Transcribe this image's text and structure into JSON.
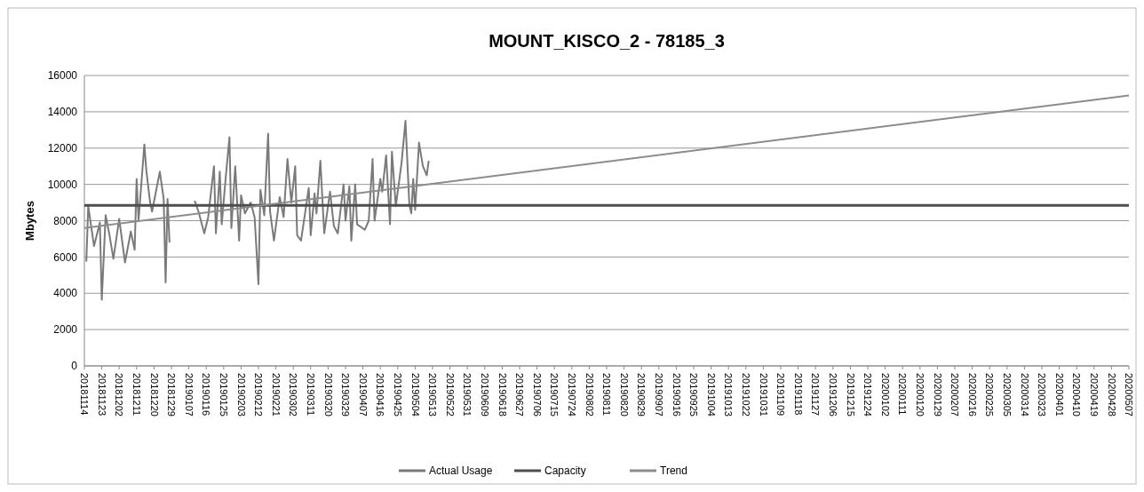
{
  "chart_data": {
    "type": "line",
    "title": "MOUNT_KISCO_2 - 78185_3",
    "ylabel": "Mbytes",
    "xlim": [
      "2018-11-14",
      "2020-05-07"
    ],
    "xticks": [
      {
        "value": "2018-11-14",
        "label": "20181114"
      },
      {
        "value": "2018-11-23",
        "label": "20181123"
      },
      {
        "value": "2018-12-02",
        "label": "20181202"
      },
      {
        "value": "2018-12-11",
        "label": "20181211"
      },
      {
        "value": "2018-12-20",
        "label": "20181220"
      },
      {
        "value": "2018-12-29",
        "label": "20181229"
      },
      {
        "value": "2019-01-07",
        "label": "20190107"
      },
      {
        "value": "2019-01-16",
        "label": "20190116"
      },
      {
        "value": "2019-01-25",
        "label": "20190125"
      },
      {
        "value": "2019-02-03",
        "label": "20190203"
      },
      {
        "value": "2019-02-12",
        "label": "20190212"
      },
      {
        "value": "2019-02-21",
        "label": "20190221"
      },
      {
        "value": "2019-03-02",
        "label": "20190302"
      },
      {
        "value": "2019-03-11",
        "label": "20190311"
      },
      {
        "value": "2019-03-20",
        "label": "20190320"
      },
      {
        "value": "2019-03-29",
        "label": "20190329"
      },
      {
        "value": "2019-04-07",
        "label": "20190407"
      },
      {
        "value": "2019-04-16",
        "label": "20190416"
      },
      {
        "value": "2019-04-25",
        "label": "20190425"
      },
      {
        "value": "2019-05-04",
        "label": "20190504"
      },
      {
        "value": "2019-05-13",
        "label": "20190513"
      },
      {
        "value": "2019-05-22",
        "label": "20190522"
      },
      {
        "value": "2019-05-31",
        "label": "20190531"
      },
      {
        "value": "2019-06-09",
        "label": "20190609"
      },
      {
        "value": "2019-06-18",
        "label": "20190618"
      },
      {
        "value": "2019-06-27",
        "label": "20190627"
      },
      {
        "value": "2019-07-06",
        "label": "20190706"
      },
      {
        "value": "2019-07-15",
        "label": "20190715"
      },
      {
        "value": "2019-07-24",
        "label": "20190724"
      },
      {
        "value": "2019-08-02",
        "label": "20190802"
      },
      {
        "value": "2019-08-11",
        "label": "20190811"
      },
      {
        "value": "2019-08-20",
        "label": "20190820"
      },
      {
        "value": "2019-08-29",
        "label": "20190829"
      },
      {
        "value": "2019-09-07",
        "label": "20190907"
      },
      {
        "value": "2019-09-16",
        "label": "20190916"
      },
      {
        "value": "2019-09-25",
        "label": "20190925"
      },
      {
        "value": "2019-10-04",
        "label": "20191004"
      },
      {
        "value": "2019-10-13",
        "label": "20191013"
      },
      {
        "value": "2019-10-22",
        "label": "20191022"
      },
      {
        "value": "2019-10-31",
        "label": "20191031"
      },
      {
        "value": "2019-11-09",
        "label": "20191109"
      },
      {
        "value": "2019-11-18",
        "label": "20191118"
      },
      {
        "value": "2019-11-27",
        "label": "20191127"
      },
      {
        "value": "2019-12-06",
        "label": "20191206"
      },
      {
        "value": "2019-12-15",
        "label": "20191215"
      },
      {
        "value": "2019-12-24",
        "label": "20191224"
      },
      {
        "value": "2020-01-02",
        "label": "20200102"
      },
      {
        "value": "2020-01-11",
        "label": "20200111"
      },
      {
        "value": "2020-01-20",
        "label": "20200120"
      },
      {
        "value": "2020-01-29",
        "label": "20200129"
      },
      {
        "value": "2020-02-07",
        "label": "20200207"
      },
      {
        "value": "2020-02-16",
        "label": "20200216"
      },
      {
        "value": "2020-02-25",
        "label": "20200225"
      },
      {
        "value": "2020-03-05",
        "label": "20200305"
      },
      {
        "value": "2020-03-14",
        "label": "20200314"
      },
      {
        "value": "2020-03-23",
        "label": "20200323"
      },
      {
        "value": "2020-04-01",
        "label": "20200401"
      },
      {
        "value": "2020-04-10",
        "label": "20200410"
      },
      {
        "value": "2020-04-19",
        "label": "20200419"
      },
      {
        "value": "2020-04-28",
        "label": "20200428"
      },
      {
        "value": "2020-05-07",
        "label": "20200507"
      }
    ],
    "ylim": [
      0,
      16000
    ],
    "yticks": [
      0,
      2000,
      4000,
      6000,
      8000,
      10000,
      12000,
      14000,
      16000
    ],
    "grid": "y",
    "legend": "bottom",
    "series": [
      {
        "name": "Actual Usage",
        "color": "#7a7a7a",
        "x": [
          "2018-11-15",
          "2018-11-16",
          "2018-11-19",
          "2018-11-22",
          "2018-11-23",
          "2018-11-25",
          "2018-11-27",
          "2018-11-29",
          "2018-12-02",
          "2018-12-04",
          "2018-12-05",
          "2018-12-08",
          "2018-12-10",
          "2018-12-11",
          "2018-12-12",
          "2018-12-15",
          "2018-12-16",
          "2018-12-18",
          "2018-12-19",
          "2018-12-21",
          "2018-12-23",
          "2018-12-25",
          "2018-12-26",
          "2018-12-27",
          "2018-12-28",
          "2019-01-03",
          "2019-01-10",
          "2019-01-12",
          "2019-01-15",
          "2019-01-17",
          "2019-01-20",
          "2019-01-21",
          "2019-01-23",
          "2019-01-24",
          "2019-01-26",
          "2019-01-28",
          "2019-01-29",
          "2019-01-31",
          "2019-02-02",
          "2019-02-03",
          "2019-02-05",
          "2019-02-08",
          "2019-02-10",
          "2019-02-12",
          "2019-02-13",
          "2019-02-15",
          "2019-02-17",
          "2019-02-18",
          "2019-02-20",
          "2019-02-23",
          "2019-02-25",
          "2019-02-27",
          "2019-03-01",
          "2019-03-03",
          "2019-03-04",
          "2019-03-06",
          "2019-03-10",
          "2019-03-11",
          "2019-03-13",
          "2019-03-14",
          "2019-03-16",
          "2019-03-18",
          "2019-03-21",
          "2019-03-23",
          "2019-03-25",
          "2019-03-28",
          "2019-03-29",
          "2019-03-31",
          "2019-04-01",
          "2019-04-03",
          "2019-04-04",
          "2019-04-08",
          "2019-04-10",
          "2019-04-12",
          "2019-04-13",
          "2019-04-16",
          "2019-04-17",
          "2019-04-19",
          "2019-04-21",
          "2019-04-22",
          "2019-04-24",
          "2019-04-27",
          "2019-04-29",
          "2019-05-01",
          "2019-05-02",
          "2019-05-03",
          "2019-05-04",
          "2019-05-06",
          "2019-05-08",
          "2019-05-10",
          "2019-05-11"
        ],
        "values": [
          5750,
          8800,
          6600,
          7900,
          3650,
          8300,
          7200,
          5900,
          8100,
          6500,
          5700,
          7400,
          6400,
          10300,
          8000,
          12200,
          10800,
          9000,
          8500,
          9600,
          10700,
          9200,
          4600,
          9200,
          6800,
          null,
          9100,
          8500,
          7300,
          8200,
          11000,
          7300,
          10700,
          7800,
          10300,
          12600,
          7600,
          11000,
          6900,
          9400,
          8400,
          9000,
          8200,
          4500,
          9700,
          8300,
          12800,
          8500,
          6900,
          9300,
          8200,
          11400,
          9000,
          11000,
          7200,
          6900,
          9800,
          7200,
          9500,
          8400,
          11300,
          7300,
          9600,
          7700,
          7300,
          10000,
          8000,
          9900,
          6900,
          10000,
          7800,
          7500,
          8000,
          11400,
          8000,
          10300,
          9600,
          11600,
          7800,
          11800,
          8800,
          11200,
          13500,
          8900,
          8400,
          10300,
          8600,
          12300,
          11000,
          10500,
          11300
        ]
      },
      {
        "name": "Capacity",
        "color": "#4d4d4d",
        "x": [
          "2018-11-14",
          "2020-05-07"
        ],
        "values": [
          8850,
          8850
        ]
      },
      {
        "name": "Trend",
        "color": "#8c8c8c",
        "x": [
          "2018-11-14",
          "2020-05-07"
        ],
        "values": [
          7600,
          14900
        ]
      }
    ]
  }
}
